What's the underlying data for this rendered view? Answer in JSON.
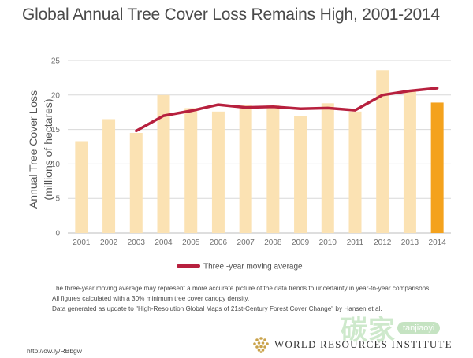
{
  "header": {
    "title": "Global Annual Tree Cover Loss Remains High, 2001-2014"
  },
  "chart_data": {
    "type": "bar",
    "categories": [
      "2001",
      "2002",
      "2003",
      "2004",
      "2005",
      "2006",
      "2007",
      "2008",
      "2009",
      "2010",
      "2011",
      "2012",
      "2013",
      "2014"
    ],
    "series": [
      {
        "name": "Annual Tree Cover Loss",
        "values": [
          13.3,
          16.5,
          14.5,
          20.0,
          18.1,
          17.6,
          18.5,
          18.5,
          17.0,
          18.8,
          17.6,
          23.6,
          20.6,
          18.9
        ],
        "color": "#fbe2b3",
        "highlight_last_color": "#f4a21d"
      },
      {
        "name": "Three -year moving average",
        "type": "line",
        "x": [
          "2003",
          "2004",
          "2005",
          "2006",
          "2007",
          "2008",
          "2009",
          "2010",
          "2011",
          "2012",
          "2013",
          "2014"
        ],
        "values": [
          14.8,
          17.0,
          17.7,
          18.6,
          18.2,
          18.3,
          18.0,
          18.1,
          17.8,
          20.0,
          20.6,
          21.0
        ],
        "color": "#b7203e"
      }
    ],
    "ylabel": "Annual Tree Cover Loss",
    "ylabel_sub": "(millions of hectares)",
    "ylim": [
      0,
      25
    ],
    "yticks": [
      0,
      5,
      10,
      15,
      20,
      25
    ],
    "grid": true,
    "legend": "bottom-center",
    "legend_label": "Three -year moving average"
  },
  "notes": [
    "The three-year moving average may represent a more accurate picture of the data trends to uncertainty in year-to-year comparisons.",
    "All figures calculated with a 30% minimum tree cover canopy density.",
    "Data generated as update to \"High-Resolution Global Maps of 21st-Century Forest Cover Change\" by Hansen et al."
  ],
  "footer": {
    "source_url": "http://ow.ly/RBbgw",
    "organization": "WORLD RESOURCES INSTITUTE",
    "logo_icon": "wri-dotted-logo-icon"
  },
  "watermark": {
    "cn_text": "碳家",
    "en_text": "tanjiaoyi",
    "icon": "carbon-watermark-icon"
  },
  "colors": {
    "grid": "#d8d8d8",
    "axis": "#bdbdbd"
  }
}
